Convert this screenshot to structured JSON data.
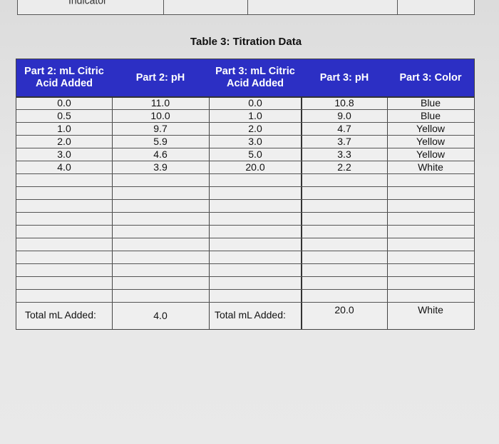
{
  "previous_table": {
    "label": "Indicator"
  },
  "title": "Table 3: Titration Data",
  "headers": {
    "p2_ml": "Part 2: mL Citric Acid Added",
    "p2_ph": "Part 2: pH",
    "p3_ml": "Part 3: mL Citric Acid Added",
    "p3_ph": "Part 3: pH",
    "p3_color": "Part 3: Color"
  },
  "rows": [
    {
      "p2_ml": "0.0",
      "p2_ph": "11.0",
      "p3_ml": "0.0",
      "p3_ph": "10.8",
      "p3_color": "Blue"
    },
    {
      "p2_ml": "0.5",
      "p2_ph": "10.0",
      "p3_ml": "1.0",
      "p3_ph": "9.0",
      "p3_color": "Blue"
    },
    {
      "p2_ml": "1.0",
      "p2_ph": "9.7",
      "p3_ml": "2.0",
      "p3_ph": "4.7",
      "p3_color": "Yellow"
    },
    {
      "p2_ml": "2.0",
      "p2_ph": "5.9",
      "p3_ml": "3.0",
      "p3_ph": "3.7",
      "p3_color": "Yellow"
    },
    {
      "p2_ml": "3.0",
      "p2_ph": "4.6",
      "p3_ml": "5.0",
      "p3_ph": "3.3",
      "p3_color": "Yellow"
    },
    {
      "p2_ml": "4.0",
      "p2_ph": "3.9",
      "p3_ml": "20.0",
      "p3_ph": "2.2",
      "p3_color": "White"
    }
  ],
  "totals": {
    "p2_label": "Total mL Added:",
    "p2_value": "4.0",
    "p3_label": "Total mL Added:",
    "p3_value": "20.0",
    "p3_color": "White"
  },
  "colors": {
    "header_bg": "#2c2fc4",
    "header_text": "#ffffff"
  }
}
